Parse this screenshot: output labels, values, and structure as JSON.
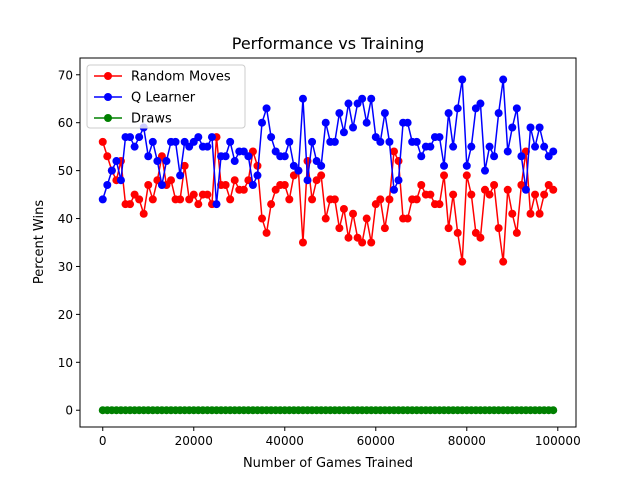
{
  "chart_data": {
    "type": "line",
    "title": "Performance vs Training",
    "xlabel": "Number of Games Trained",
    "ylabel": "Percent Wins",
    "xlim": [
      -5000,
      104000
    ],
    "ylim": [
      -3.5,
      73.5
    ],
    "xticks": [
      0,
      20000,
      40000,
      60000,
      80000,
      100000
    ],
    "xtick_labels": [
      "0",
      "20000",
      "40000",
      "60000",
      "80000",
      "100000"
    ],
    "yticks": [
      0,
      10,
      20,
      30,
      40,
      50,
      60,
      70
    ],
    "ytick_labels": [
      "0",
      "10",
      "20",
      "30",
      "40",
      "50",
      "60",
      "70"
    ],
    "grid": false,
    "legend_position": "top-left",
    "x": [
      0,
      1000,
      2000,
      3000,
      4000,
      5000,
      6000,
      7000,
      8000,
      9000,
      10000,
      11000,
      12000,
      13000,
      14000,
      15000,
      16000,
      17000,
      18000,
      19000,
      20000,
      21000,
      22000,
      23000,
      24000,
      25000,
      26000,
      27000,
      28000,
      29000,
      30000,
      31000,
      32000,
      33000,
      34000,
      35000,
      36000,
      37000,
      38000,
      39000,
      40000,
      41000,
      42000,
      43000,
      44000,
      45000,
      46000,
      47000,
      48000,
      49000,
      50000,
      51000,
      52000,
      53000,
      54000,
      55000,
      56000,
      57000,
      58000,
      59000,
      60000,
      61000,
      62000,
      63000,
      64000,
      65000,
      66000,
      67000,
      68000,
      69000,
      70000,
      71000,
      72000,
      73000,
      74000,
      75000,
      76000,
      77000,
      78000,
      79000,
      80000,
      81000,
      82000,
      83000,
      84000,
      85000,
      86000,
      87000,
      88000,
      89000,
      90000,
      91000,
      92000,
      93000,
      94000,
      95000,
      96000,
      97000,
      98000,
      99000
    ],
    "series": [
      {
        "name": "Random Moves",
        "color": "#ff0000",
        "values": [
          56,
          53,
          50,
          48,
          52,
          43,
          43,
          45,
          44,
          41,
          47,
          44,
          48,
          53,
          47,
          48,
          44,
          44,
          51,
          44,
          45,
          43,
          45,
          45,
          43,
          57,
          47,
          47,
          44,
          48,
          46,
          46,
          48,
          54,
          51,
          40,
          37,
          43,
          46,
          47,
          47,
          44,
          49,
          50,
          35,
          52,
          44,
          48,
          49,
          40,
          44,
          44,
          38,
          42,
          36,
          41,
          36,
          35,
          40,
          35,
          43,
          44,
          38,
          44,
          54,
          52,
          40,
          40,
          44,
          44,
          47,
          45,
          45,
          43,
          43,
          49,
          38,
          45,
          37,
          31,
          49,
          45,
          37,
          36,
          46,
          45,
          47,
          38,
          31,
          46,
          41,
          37,
          47,
          54,
          41,
          45,
          41,
          45,
          47,
          46
        ]
      },
      {
        "name": "Q Learner",
        "color": "#0000ff",
        "values": [
          44,
          47,
          50,
          52,
          48,
          57,
          57,
          55,
          57,
          59,
          53,
          56,
          52,
          47,
          52,
          56,
          56,
          49,
          56,
          55,
          56,
          57,
          55,
          55,
          57,
          43,
          53,
          53,
          56,
          52,
          54,
          54,
          53,
          47,
          49,
          60,
          63,
          57,
          54,
          53,
          53,
          56,
          51,
          50,
          65,
          48,
          56,
          52,
          51,
          60,
          56,
          56,
          62,
          58,
          64,
          59,
          64,
          65,
          60,
          65,
          57,
          56,
          62,
          56,
          46,
          48,
          60,
          60,
          56,
          56,
          53,
          55,
          55,
          57,
          57,
          51,
          62,
          55,
          63,
          69,
          51,
          55,
          63,
          64,
          50,
          55,
          53,
          62,
          69,
          54,
          59,
          63,
          53,
          46,
          59,
          55,
          59,
          55,
          53,
          54
        ]
      },
      {
        "name": "Draws",
        "color": "#008000",
        "values": [
          0,
          0,
          0,
          0,
          0,
          0,
          0,
          0,
          0,
          0,
          0,
          0,
          0,
          0,
          0,
          0,
          0,
          0,
          0,
          0,
          0,
          0,
          0,
          0,
          0,
          0,
          0,
          0,
          0,
          0,
          0,
          0,
          0,
          0,
          0,
          0,
          0,
          0,
          0,
          0,
          0,
          0,
          0,
          0,
          0,
          0,
          0,
          0,
          0,
          0,
          0,
          0,
          0,
          0,
          0,
          0,
          0,
          0,
          0,
          0,
          0,
          0,
          0,
          0,
          0,
          0,
          0,
          0,
          0,
          0,
          0,
          0,
          0,
          0,
          0,
          0,
          0,
          0,
          0,
          0,
          0,
          0,
          0,
          0,
          0,
          0,
          0,
          0,
          0,
          0,
          0,
          0,
          0,
          0,
          0,
          0,
          0,
          0,
          0,
          0
        ]
      }
    ]
  }
}
